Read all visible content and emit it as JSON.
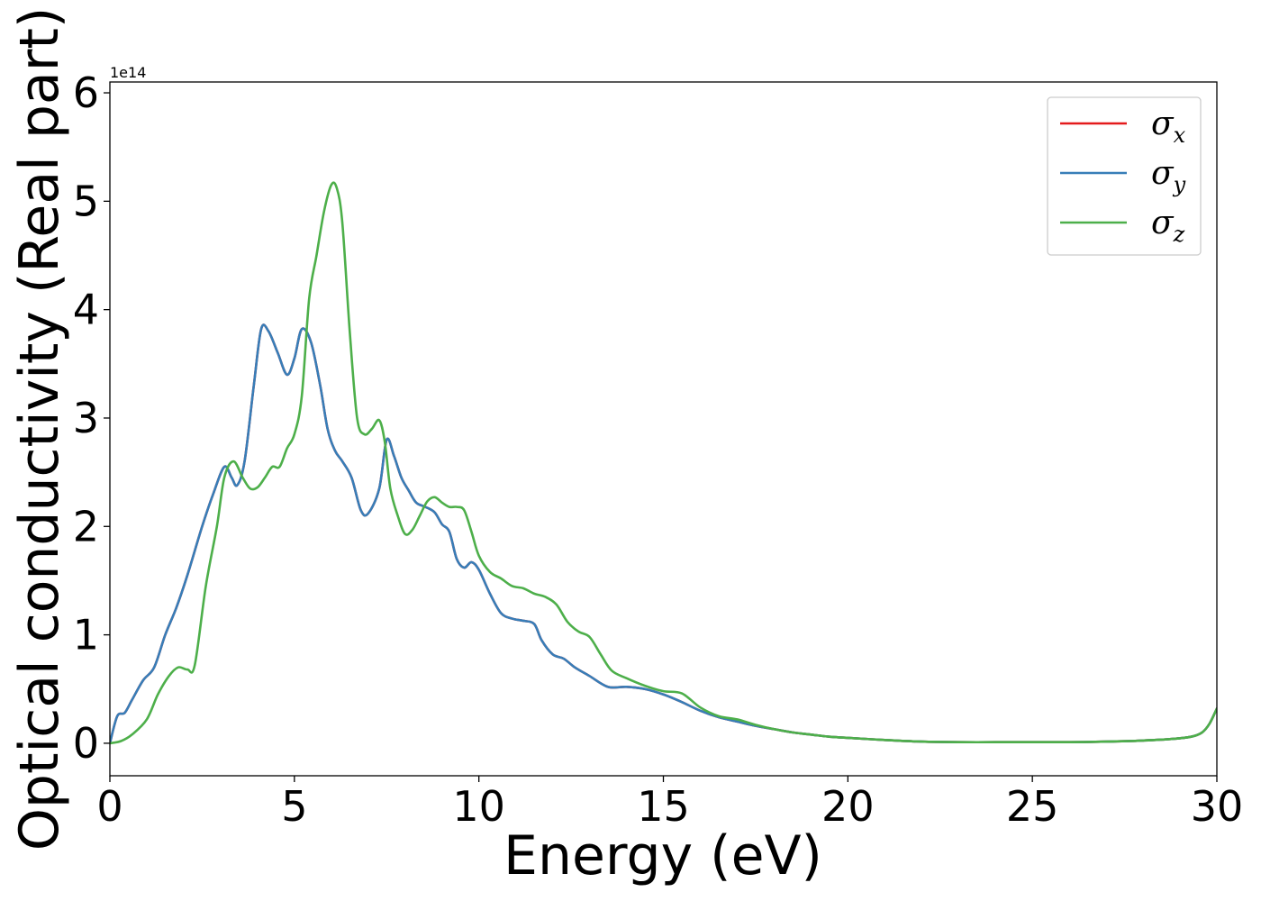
{
  "chart_data": {
    "type": "line",
    "xlabel": "Energy (eV)",
    "ylabel": "Optical conductivity (Real part)",
    "y_offset_text": "1e14",
    "xlim": [
      0,
      30
    ],
    "ylim": [
      -0.3,
      6.1
    ],
    "x_ticks": [
      "0",
      "5",
      "10",
      "15",
      "20",
      "25",
      "30"
    ],
    "y_ticks": [
      "0",
      "1",
      "2",
      "3",
      "4",
      "5",
      "6"
    ],
    "grid": false,
    "legend_position": "top-right",
    "series": [
      {
        "name": "σ",
        "subscript": "x",
        "color": "#e41a1c",
        "x": [
          0,
          0.2,
          0.4,
          0.6,
          0.9,
          1.2,
          1.5,
          1.8,
          2.1,
          2.5,
          2.8,
          3.1,
          3.3,
          3.45,
          3.65,
          3.9,
          4.1,
          4.3,
          4.55,
          4.8,
          5.0,
          5.2,
          5.45,
          5.7,
          5.9,
          6.1,
          6.3,
          6.55,
          6.8,
          7.0,
          7.3,
          7.5,
          7.7,
          7.9,
          8.1,
          8.3,
          8.55,
          8.8,
          9.0,
          9.2,
          9.4,
          9.6,
          9.8,
          10.0,
          10.3,
          10.6,
          10.9,
          11.2,
          11.5,
          11.7,
          12.0,
          12.3,
          12.6,
          13.0,
          13.5,
          14.0,
          14.5,
          15.0,
          15.5,
          16.0,
          16.5,
          17.0,
          17.5,
          18.0,
          18.5,
          19.0,
          19.5,
          20.0,
          21.0,
          22.0,
          23.0,
          24.0,
          25.0,
          26.0,
          27.0,
          28.0,
          28.8,
          29.3,
          29.6,
          29.8,
          30.0
        ],
        "values": [
          0.0,
          0.25,
          0.28,
          0.4,
          0.58,
          0.7,
          1.0,
          1.25,
          1.55,
          2.0,
          2.3,
          2.55,
          2.45,
          2.38,
          2.6,
          3.3,
          3.82,
          3.8,
          3.6,
          3.4,
          3.55,
          3.82,
          3.7,
          3.3,
          2.9,
          2.7,
          2.6,
          2.45,
          2.15,
          2.12,
          2.35,
          2.8,
          2.65,
          2.45,
          2.33,
          2.22,
          2.18,
          2.13,
          2.02,
          1.95,
          1.7,
          1.62,
          1.67,
          1.6,
          1.38,
          1.2,
          1.15,
          1.13,
          1.1,
          0.95,
          0.82,
          0.78,
          0.7,
          0.62,
          0.52,
          0.52,
          0.5,
          0.45,
          0.38,
          0.3,
          0.24,
          0.2,
          0.16,
          0.13,
          0.1,
          0.08,
          0.06,
          0.05,
          0.03,
          0.015,
          0.01,
          0.01,
          0.01,
          0.01,
          0.015,
          0.025,
          0.04,
          0.06,
          0.1,
          0.18,
          0.32
        ]
      },
      {
        "name": "σ",
        "subscript": "y",
        "color": "#377eb8",
        "x": [
          0,
          0.2,
          0.4,
          0.6,
          0.9,
          1.2,
          1.5,
          1.8,
          2.1,
          2.5,
          2.8,
          3.1,
          3.3,
          3.45,
          3.65,
          3.9,
          4.1,
          4.3,
          4.55,
          4.8,
          5.0,
          5.2,
          5.45,
          5.7,
          5.9,
          6.1,
          6.3,
          6.55,
          6.8,
          7.0,
          7.3,
          7.5,
          7.7,
          7.9,
          8.1,
          8.3,
          8.55,
          8.8,
          9.0,
          9.2,
          9.4,
          9.6,
          9.8,
          10.0,
          10.3,
          10.6,
          10.9,
          11.2,
          11.5,
          11.7,
          12.0,
          12.3,
          12.6,
          13.0,
          13.5,
          14.0,
          14.5,
          15.0,
          15.5,
          16.0,
          16.5,
          17.0,
          17.5,
          18.0,
          18.5,
          19.0,
          19.5,
          20.0,
          21.0,
          22.0,
          23.0,
          24.0,
          25.0,
          26.0,
          27.0,
          28.0,
          28.8,
          29.3,
          29.6,
          29.8,
          30.0
        ],
        "values": [
          0.0,
          0.25,
          0.28,
          0.4,
          0.58,
          0.7,
          1.0,
          1.25,
          1.55,
          2.0,
          2.3,
          2.55,
          2.45,
          2.38,
          2.6,
          3.3,
          3.82,
          3.8,
          3.6,
          3.4,
          3.55,
          3.82,
          3.7,
          3.3,
          2.9,
          2.7,
          2.6,
          2.45,
          2.15,
          2.12,
          2.35,
          2.8,
          2.65,
          2.45,
          2.33,
          2.22,
          2.18,
          2.13,
          2.02,
          1.95,
          1.7,
          1.62,
          1.67,
          1.6,
          1.38,
          1.2,
          1.15,
          1.13,
          1.1,
          0.95,
          0.82,
          0.78,
          0.7,
          0.62,
          0.52,
          0.52,
          0.5,
          0.45,
          0.38,
          0.3,
          0.24,
          0.2,
          0.16,
          0.13,
          0.1,
          0.08,
          0.06,
          0.05,
          0.03,
          0.015,
          0.01,
          0.01,
          0.01,
          0.01,
          0.015,
          0.025,
          0.04,
          0.06,
          0.1,
          0.18,
          0.32
        ]
      },
      {
        "name": "σ",
        "subscript": "z",
        "color": "#4daf4a",
        "x": [
          0,
          0.3,
          0.6,
          1.0,
          1.3,
          1.6,
          1.85,
          2.1,
          2.3,
          2.6,
          2.9,
          3.1,
          3.35,
          3.6,
          3.8,
          4.0,
          4.2,
          4.4,
          4.6,
          4.8,
          5.0,
          5.2,
          5.4,
          5.6,
          5.8,
          6.0,
          6.15,
          6.3,
          6.5,
          6.7,
          6.9,
          7.1,
          7.3,
          7.45,
          7.6,
          7.8,
          8.0,
          8.2,
          8.4,
          8.6,
          8.8,
          9.0,
          9.2,
          9.4,
          9.6,
          9.8,
          10.0,
          10.3,
          10.6,
          10.9,
          11.2,
          11.5,
          11.8,
          12.1,
          12.4,
          12.7,
          13.0,
          13.3,
          13.6,
          14.0,
          14.5,
          15.0,
          15.5,
          16.0,
          16.5,
          17.0,
          17.5,
          18.0,
          18.5,
          19.0,
          19.5,
          20.0,
          21.0,
          22.0,
          23.0,
          24.0,
          25.0,
          26.0,
          27.0,
          28.0,
          28.8,
          29.3,
          29.6,
          29.8,
          30.0
        ],
        "values": [
          0.0,
          0.02,
          0.08,
          0.22,
          0.45,
          0.62,
          0.7,
          0.68,
          0.72,
          1.45,
          2.0,
          2.45,
          2.6,
          2.45,
          2.35,
          2.36,
          2.45,
          2.55,
          2.55,
          2.72,
          2.85,
          3.2,
          4.1,
          4.5,
          4.9,
          5.15,
          5.12,
          4.8,
          3.8,
          3.0,
          2.85,
          2.9,
          2.98,
          2.78,
          2.35,
          2.1,
          1.93,
          1.97,
          2.1,
          2.23,
          2.27,
          2.22,
          2.18,
          2.18,
          2.15,
          1.95,
          1.73,
          1.58,
          1.52,
          1.45,
          1.43,
          1.38,
          1.35,
          1.28,
          1.12,
          1.03,
          0.98,
          0.82,
          0.67,
          0.6,
          0.53,
          0.48,
          0.46,
          0.33,
          0.25,
          0.22,
          0.17,
          0.13,
          0.1,
          0.08,
          0.06,
          0.05,
          0.03,
          0.015,
          0.01,
          0.01,
          0.01,
          0.01,
          0.015,
          0.025,
          0.04,
          0.06,
          0.1,
          0.18,
          0.32
        ]
      }
    ]
  }
}
